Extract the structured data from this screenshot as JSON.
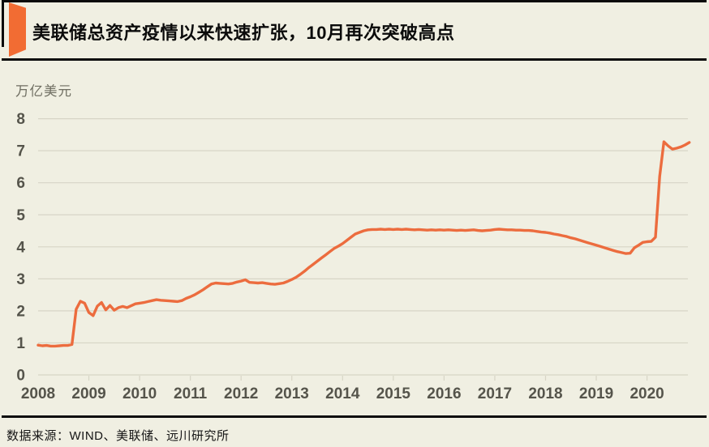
{
  "header": {
    "title": "美联储总资产疫情以来快速扩张，10月再次突破高点",
    "accent_color": "#F26C33"
  },
  "chart": {
    "unit_label": "万亿美元",
    "line_color": "#EC6C3E",
    "grid_color": "#D7D5C6",
    "tick_label_color": "#55544B"
  },
  "chart_data": {
    "type": "line",
    "title": "美联储总资产疫情以来快速扩张，10月再次突破高点",
    "ylabel": "万亿美元",
    "xlabel": "",
    "ylim": [
      0,
      8
    ],
    "xlim": [
      2008,
      2020.92
    ],
    "grid": "horizontal",
    "legend": "none",
    "y_ticks": [
      0,
      1,
      2,
      3,
      4,
      5,
      6,
      7,
      8
    ],
    "x_tick_labels": [
      "2008",
      "2009",
      "2010",
      "2011",
      "2012",
      "2013",
      "2014",
      "2015",
      "2016",
      "2017",
      "2018",
      "2019",
      "2020"
    ],
    "series": [
      {
        "name": "美联储总资产(万亿美元)",
        "start_year": 2008,
        "interval_months": 1,
        "values": [
          0.93,
          0.91,
          0.92,
          0.9,
          0.9,
          0.91,
          0.92,
          0.92,
          0.95,
          2.05,
          2.3,
          2.24,
          1.95,
          1.85,
          2.15,
          2.26,
          2.03,
          2.17,
          2.02,
          2.1,
          2.14,
          2.1,
          2.16,
          2.22,
          2.24,
          2.26,
          2.29,
          2.32,
          2.35,
          2.33,
          2.32,
          2.31,
          2.3,
          2.29,
          2.32,
          2.39,
          2.44,
          2.5,
          2.58,
          2.66,
          2.75,
          2.84,
          2.87,
          2.86,
          2.85,
          2.84,
          2.86,
          2.9,
          2.93,
          2.97,
          2.89,
          2.88,
          2.87,
          2.88,
          2.86,
          2.84,
          2.83,
          2.85,
          2.87,
          2.92,
          2.98,
          3.05,
          3.14,
          3.24,
          3.35,
          3.45,
          3.55,
          3.65,
          3.75,
          3.85,
          3.95,
          4.02,
          4.1,
          4.2,
          4.3,
          4.4,
          4.45,
          4.5,
          4.53,
          4.54,
          4.54,
          4.55,
          4.54,
          4.55,
          4.54,
          4.55,
          4.54,
          4.55,
          4.54,
          4.53,
          4.54,
          4.53,
          4.52,
          4.53,
          4.52,
          4.53,
          4.52,
          4.53,
          4.52,
          4.51,
          4.52,
          4.51,
          4.52,
          4.53,
          4.51,
          4.5,
          4.51,
          4.52,
          4.54,
          4.55,
          4.54,
          4.53,
          4.53,
          4.52,
          4.52,
          4.51,
          4.51,
          4.5,
          4.48,
          4.46,
          4.45,
          4.43,
          4.4,
          4.38,
          4.35,
          4.32,
          4.28,
          4.25,
          4.21,
          4.17,
          4.13,
          4.09,
          4.05,
          4.01,
          3.97,
          3.93,
          3.89,
          3.85,
          3.82,
          3.79,
          3.8,
          3.97,
          4.05,
          4.14,
          4.16,
          4.17,
          4.3,
          6.2,
          7.28,
          7.15,
          7.05,
          7.08,
          7.12,
          7.18,
          7.26
        ]
      }
    ]
  },
  "footer": {
    "source": "数据来源：WIND、美联储、远川研究所"
  }
}
